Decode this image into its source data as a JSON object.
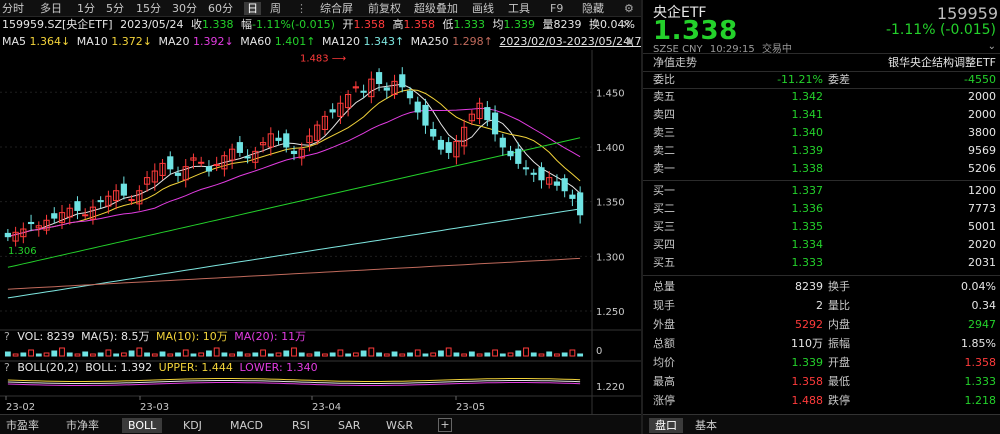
{
  "toolbar": {
    "periods": [
      "分时",
      "多日",
      "1分",
      "5分",
      "15分",
      "30分",
      "60分",
      "日",
      "周"
    ],
    "active": "日",
    "more_icon": "ellipsis-icon",
    "menus": [
      "综合屏",
      "前复权",
      "超级叠加",
      "画线",
      "工具",
      "F9",
      "隐藏"
    ]
  },
  "info": {
    "symbol": "159959.SZ[央企ETF]",
    "date": "2023/05/24",
    "close_label": "收",
    "close": "1.338",
    "change_label": "幅",
    "change": "-1.11%(-0.015)",
    "open_label": "开",
    "open": "1.358",
    "high_label": "高",
    "high": "1.358",
    "low_label": "低",
    "low": "1.333",
    "avg_label": "均",
    "avg": "1.339",
    "volume_label": "量",
    "volume": "8239",
    "turnover_label": "换",
    "turnover": "0.04%"
  },
  "ma_legend": {
    "ma5_label": "MA5",
    "ma5": "1.364↓",
    "ma10_label": "MA10",
    "ma10": "1.372↓",
    "ma20_label": "MA20",
    "ma20": "1.392↓",
    "ma60_label": "MA60",
    "ma60": "1.401↑",
    "ma120_label": "MA120",
    "ma120": "1.343↑",
    "ma250_label": "MA250",
    "ma250": "1.298↑",
    "range": "2023/02/03-2023/05/24(75日)"
  },
  "price_axis": [
    "1.450",
    "1.400",
    "1.350",
    "1.300",
    "1.250"
  ],
  "annotations": {
    "max": "1.483",
    "min": "1.306"
  },
  "vol_pane": {
    "q": "?",
    "label": "VOL: 8239",
    "ma5": "MA(5): 8.5万",
    "ma10": "MA(10): 10万",
    "ma20": "MA(20): 11万",
    "axis": "0"
  },
  "boll_pane": {
    "q": "?",
    "label": "BOLL(20,2)",
    "boll": "BOLL: 1.392",
    "upper": "UPPER: 1.444",
    "lower": "LOWER: 1.340",
    "axis": "1.220"
  },
  "dates": [
    "23-02",
    "23-03",
    "23-04",
    "23-05"
  ],
  "bottom_tabs": [
    "市盈率",
    "市净率",
    "BOLL",
    "KDJ",
    "MACD",
    "RSI",
    "SAR",
    "W&R"
  ],
  "bottom_active": "BOLL",
  "colors": {
    "up": "#ff3b3b",
    "down": "#6fe3e3",
    "green": "#24d12b"
  },
  "quote": {
    "title": "央企ETF",
    "code": "159959",
    "price": "1.338",
    "change": "-1.11% (-0.015)",
    "exchange": "SZSE",
    "currency": "CNY",
    "time": "10:29:15",
    "status": "交易中",
    "nav_label": "净值走势",
    "index_name": "银华央企结构调整ETF",
    "webi_label": "委比",
    "webi": "-11.21%",
    "weicha_label": "委差",
    "weicha": "-4550",
    "asks": [
      {
        "label": "卖五",
        "price": "1.342",
        "vol": "2000"
      },
      {
        "label": "卖四",
        "price": "1.341",
        "vol": "2000"
      },
      {
        "label": "卖三",
        "price": "1.340",
        "vol": "3800"
      },
      {
        "label": "卖二",
        "price": "1.339",
        "vol": "9569"
      },
      {
        "label": "卖一",
        "price": "1.338",
        "vol": "5206"
      }
    ],
    "bids": [
      {
        "label": "买一",
        "price": "1.337",
        "vol": "1200"
      },
      {
        "label": "买二",
        "price": "1.336",
        "vol": "7773"
      },
      {
        "label": "买三",
        "price": "1.335",
        "vol": "5001"
      },
      {
        "label": "买四",
        "price": "1.334",
        "vol": "2020"
      },
      {
        "label": "买五",
        "price": "1.333",
        "vol": "2031"
      }
    ],
    "stats": [
      {
        "l1": "总量",
        "v1": "8239",
        "c1": "#e6e6e6",
        "l2": "换手",
        "v2": "0.04%",
        "c2": "#e6e6e6"
      },
      {
        "l1": "现手",
        "v1": "2",
        "c1": "#e6e6e6",
        "l2": "量比",
        "v2": "0.34",
        "c2": "#e6e6e6"
      },
      {
        "l1": "外盘",
        "v1": "5292",
        "c1": "#ff3b3b",
        "l2": "内盘",
        "v2": "2947",
        "c2": "#24d12b"
      },
      {
        "l1": "总额",
        "v1": "110万",
        "c1": "#e6e6e6",
        "l2": "振幅",
        "v2": "1.85%",
        "c2": "#e6e6e6"
      },
      {
        "l1": "均价",
        "v1": "1.339",
        "c1": "#24d12b",
        "l2": "开盘",
        "v2": "1.358",
        "c2": "#ff3b3b"
      },
      {
        "l1": "最高",
        "v1": "1.358",
        "c1": "#ff3b3b",
        "l2": "最低",
        "v2": "1.333",
        "c2": "#24d12b"
      },
      {
        "l1": "涨停",
        "v1": "1.488",
        "c1": "#ff3b3b",
        "l2": "跌停",
        "v2": "1.218",
        "c2": "#24d12b"
      }
    ],
    "tabs": [
      "盘口",
      "基本"
    ],
    "tab_active": "盘口"
  }
}
